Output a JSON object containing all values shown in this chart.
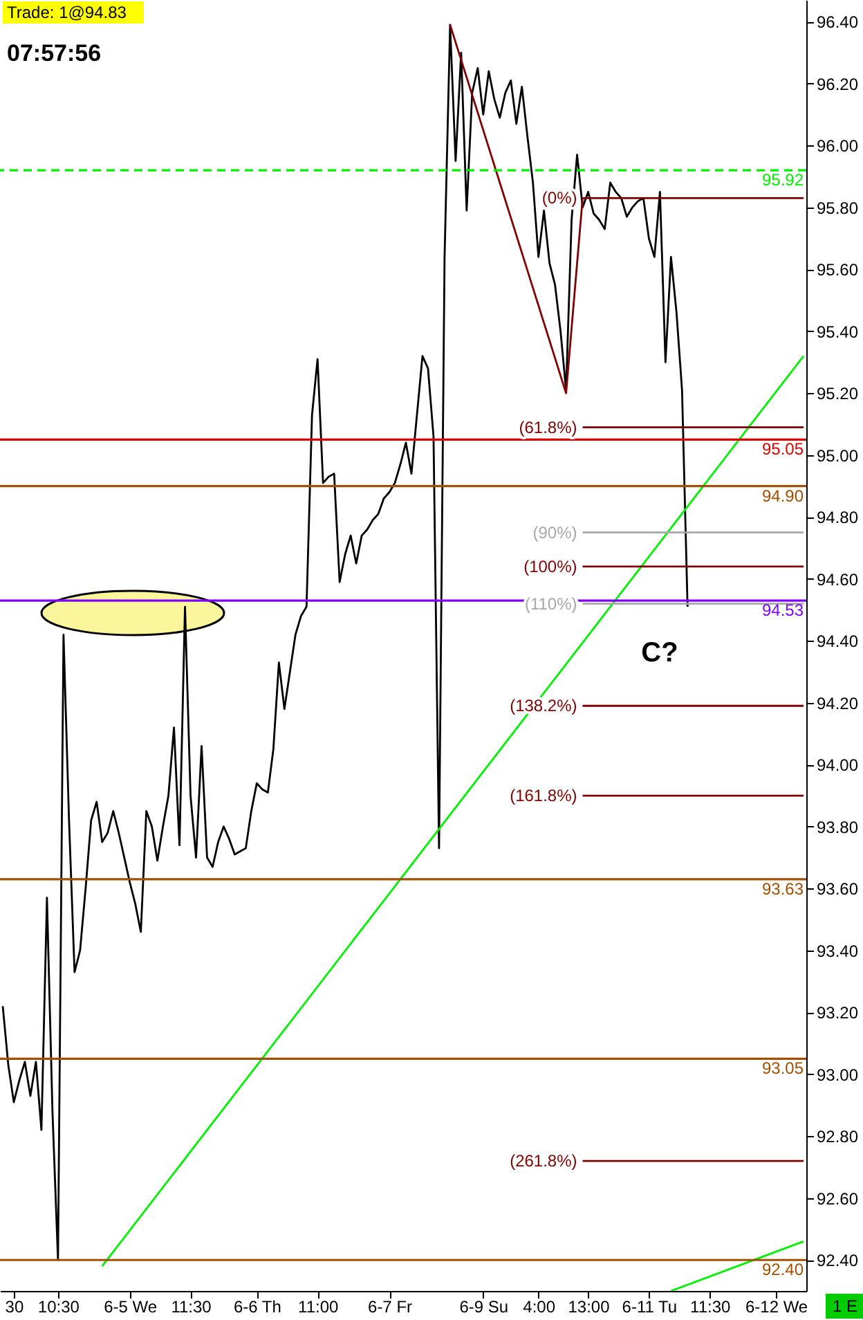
{
  "chart_data": {
    "type": "line",
    "title": "Trade: 1@94.83",
    "subtitle": "07:57:56",
    "categories": [
      null,
      null,
      "30",
      null,
      null,
      null,
      null,
      null,
      null,
      null,
      "10:30",
      null,
      null,
      null,
      null,
      null,
      null,
      null,
      null,
      null,
      null,
      null,
      null,
      "6-5 We",
      null,
      null,
      null,
      null,
      null,
      null,
      null,
      null,
      null,
      null,
      "11:30",
      null,
      null,
      null,
      null,
      null,
      null,
      null,
      null,
      null,
      null,
      null,
      "6-6 Th",
      null,
      null,
      null,
      null,
      null,
      null,
      null,
      null,
      null,
      null,
      "11:00",
      null,
      null,
      null,
      null,
      null,
      null,
      null,
      null,
      null,
      null,
      null,
      null,
      "6-7 Fr",
      null,
      null,
      null,
      null,
      null,
      null,
      null,
      null,
      null,
      null,
      null,
      null,
      null,
      null,
      null,
      null,
      "6-9 Su",
      null,
      null,
      null,
      null,
      null,
      null,
      null,
      null,
      null,
      "4:00",
      null,
      null,
      null,
      null,
      null,
      null,
      null,
      null,
      "13:00",
      null,
      null,
      null,
      null,
      null,
      null,
      null,
      null,
      null,
      null,
      "6-11 Tu",
      null,
      null,
      null,
      null,
      null,
      null,
      null,
      null,
      null,
      null,
      "11:30",
      null,
      null,
      null,
      null,
      null,
      null,
      null,
      null,
      null,
      null,
      null,
      "6-12 We",
      null,
      null,
      null,
      null,
      null
    ],
    "ylim": [
      92.3,
      96.47
    ],
    "yticks": [
      {
        "value": 92.4,
        "label": "92.40"
      },
      {
        "value": 92.6,
        "label": "92.60"
      },
      {
        "value": 92.8,
        "label": "92.80"
      },
      {
        "value": 93,
        "label": "93.00"
      },
      {
        "value": 93.2,
        "label": "93.20"
      },
      {
        "value": 93.4,
        "label": "93.40"
      },
      {
        "value": 93.6,
        "label": "93.60"
      },
      {
        "value": 93.8,
        "label": "93.80"
      },
      {
        "value": 94,
        "label": "94.00"
      },
      {
        "value": 94.2,
        "label": "94.20"
      },
      {
        "value": 94.4,
        "label": "94.40"
      },
      {
        "value": 94.6,
        "label": "94.60"
      },
      {
        "value": 94.8,
        "label": "94.80"
      },
      {
        "value": 95,
        "label": "95.00"
      },
      {
        "value": 95.2,
        "label": "95.20"
      },
      {
        "value": 95.4,
        "label": "95.40"
      },
      {
        "value": 95.6,
        "label": "95.60"
      },
      {
        "value": 95.8,
        "label": "95.80"
      },
      {
        "value": 96,
        "label": "96.00"
      },
      {
        "value": 96.2,
        "label": "96.20"
      },
      {
        "value": 96.4,
        "label": "96.40"
      }
    ],
    "grid": false,
    "marker": "none",
    "series": [
      {
        "color": "#000000",
        "values": [
          93.22,
          93.03,
          92.91,
          92.98,
          93.04,
          92.93,
          93.04,
          92.82,
          93.57,
          92.88,
          92.4,
          94.42,
          93.82,
          93.33,
          93.4,
          93.6,
          93.82,
          93.88,
          93.75,
          93.78,
          93.85,
          93.78,
          93.7,
          93.62,
          93.55,
          93.46,
          93.85,
          93.8,
          93.69,
          93.8,
          93.9,
          94.12,
          93.74,
          94.51,
          93.9,
          93.7,
          94.06,
          93.7,
          93.67,
          93.75,
          93.8,
          93.76,
          93.71,
          93.72,
          93.73,
          93.85,
          93.94,
          93.92,
          93.91,
          94.05,
          94.33,
          94.18,
          94.3,
          94.42,
          94.48,
          94.51,
          95.13,
          95.31,
          94.91,
          94.93,
          94.94,
          94.59,
          94.68,
          94.74,
          94.65,
          94.74,
          94.76,
          94.79,
          94.81,
          94.86,
          94.88,
          94.91,
          94.97,
          95.04,
          94.94,
          95.13,
          95.32,
          95.28,
          95.06,
          93.73,
          95.64,
          96.39,
          95.95,
          96.3,
          95.79,
          96.17,
          96.25,
          96.1,
          96.24,
          96.15,
          96.09,
          96.17,
          96.21,
          96.07,
          96.19,
          96.03,
          95.88,
          95.64,
          95.79,
          95.62,
          95.55,
          95.4,
          95.21,
          95.76,
          95.97,
          95.8,
          95.85,
          95.78,
          95.76,
          95.73,
          95.88,
          95.85,
          95.83,
          95.77,
          95.8,
          95.82,
          95.83,
          95.7,
          95.64,
          95.85,
          95.3,
          95.64,
          95.46,
          95.21,
          94.51,
          null,
          null,
          null,
          null,
          null,
          null,
          null,
          null,
          null,
          null,
          null,
          null,
          null,
          null,
          null,
          null,
          null,
          null,
          null,
          null,
          null
        ]
      },
      {
        "color": "#00ee00",
        "values": [
          null,
          null,
          null,
          null,
          null,
          null,
          null,
          null,
          null,
          null,
          null,
          null,
          null,
          null,
          null,
          null,
          null,
          null,
          92.38,
          null,
          null,
          null,
          null,
          null,
          null,
          null,
          null,
          null,
          null,
          null,
          null,
          null,
          null,
          null,
          null,
          null,
          null,
          null,
          null,
          null,
          null,
          null,
          null,
          null,
          null,
          null,
          null,
          null,
          null,
          null,
          null,
          null,
          null,
          null,
          null,
          null,
          null,
          null,
          null,
          null,
          null,
          null,
          null,
          null,
          null,
          null,
          null,
          null,
          null,
          null,
          null,
          null,
          null,
          null,
          null,
          null,
          null,
          null,
          null,
          null,
          null,
          null,
          null,
          null,
          null,
          null,
          null,
          null,
          null,
          null,
          null,
          null,
          null,
          null,
          null,
          null,
          null,
          null,
          null,
          null,
          null,
          null,
          null,
          null,
          null,
          null,
          null,
          null,
          null,
          null,
          null,
          null,
          null,
          null,
          null,
          null,
          null,
          null,
          null,
          null,
          null,
          null,
          null,
          null,
          null,
          null,
          null,
          null,
          null,
          null,
          null,
          null,
          null,
          null,
          null,
          null,
          null,
          null,
          null,
          null,
          null,
          null,
          null,
          null,
          null,
          95.32
        ]
      },
      {
        "color": "#00ee00",
        "values": [
          null,
          null,
          null,
          null,
          null,
          null,
          null,
          null,
          null,
          null,
          null,
          null,
          null,
          null,
          null,
          null,
          null,
          null,
          null,
          null,
          null,
          null,
          null,
          null,
          null,
          null,
          null,
          null,
          null,
          null,
          null,
          null,
          null,
          null,
          null,
          null,
          null,
          null,
          null,
          null,
          null,
          null,
          null,
          null,
          null,
          null,
          null,
          null,
          null,
          null,
          null,
          null,
          null,
          null,
          null,
          null,
          null,
          null,
          null,
          null,
          null,
          null,
          null,
          null,
          null,
          null,
          null,
          null,
          null,
          null,
          null,
          null,
          null,
          null,
          null,
          null,
          null,
          null,
          null,
          null,
          null,
          null,
          null,
          null,
          null,
          null,
          null,
          null,
          null,
          null,
          null,
          null,
          null,
          null,
          null,
          null,
          null,
          null,
          null,
          null,
          null,
          null,
          null,
          null,
          null,
          null,
          null,
          null,
          null,
          null,
          null,
          null,
          null,
          null,
          null,
          null,
          null,
          null,
          null,
          null,
          null,
          92.3,
          null,
          null,
          null,
          null,
          null,
          null,
          null,
          null,
          null,
          null,
          null,
          null,
          null,
          null,
          null,
          null,
          null,
          null,
          null,
          null,
          null,
          null,
          null,
          92.46
        ]
      },
      {
        "color": "#800000",
        "values": [
          null,
          null,
          null,
          null,
          null,
          null,
          null,
          null,
          null,
          null,
          null,
          null,
          null,
          null,
          null,
          null,
          null,
          null,
          null,
          null,
          null,
          null,
          null,
          null,
          null,
          null,
          null,
          null,
          null,
          null,
          null,
          null,
          null,
          null,
          null,
          null,
          null,
          null,
          null,
          null,
          null,
          null,
          null,
          null,
          null,
          null,
          null,
          null,
          null,
          null,
          null,
          null,
          null,
          null,
          null,
          null,
          null,
          null,
          null,
          null,
          null,
          null,
          null,
          null,
          null,
          null,
          null,
          null,
          null,
          null,
          null,
          null,
          null,
          null,
          null,
          null,
          null,
          null,
          null,
          null,
          null,
          96.39,
          null,
          null,
          null,
          null,
          null,
          null,
          null,
          null,
          null,
          null,
          null,
          null,
          null,
          null,
          null,
          null,
          null,
          null,
          null,
          null,
          95.2,
          null,
          null,
          95.83,
          null,
          null,
          null,
          null,
          null,
          null,
          null,
          null,
          null,
          null,
          null,
          null,
          null,
          null,
          null,
          null,
          null,
          null,
          null,
          null,
          null,
          null,
          null,
          null,
          null,
          null,
          null,
          null,
          null,
          null,
          null,
          null,
          null,
          null,
          null,
          null,
          null,
          null,
          null,
          null
        ]
      },
      {
        "name": "(0%)",
        "color": "#800000",
        "values": [
          null,
          null,
          null,
          null,
          null,
          null,
          null,
          null,
          null,
          null,
          null,
          null,
          null,
          null,
          null,
          null,
          null,
          null,
          null,
          null,
          null,
          null,
          null,
          null,
          null,
          null,
          null,
          null,
          null,
          null,
          null,
          null,
          null,
          null,
          null,
          null,
          null,
          null,
          null,
          null,
          null,
          null,
          null,
          null,
          null,
          null,
          null,
          null,
          null,
          null,
          null,
          null,
          null,
          null,
          null,
          null,
          null,
          null,
          null,
          null,
          null,
          null,
          null,
          null,
          null,
          null,
          null,
          null,
          null,
          null,
          null,
          null,
          null,
          null,
          null,
          null,
          null,
          null,
          null,
          null,
          null,
          null,
          null,
          null,
          null,
          null,
          null,
          null,
          null,
          null,
          null,
          null,
          null,
          null,
          null,
          null,
          null,
          null,
          null,
          null,
          null,
          null,
          null,
          null,
          null,
          95.83,
          null,
          null,
          null,
          null,
          null,
          null,
          null,
          null,
          null,
          null,
          null,
          null,
          null,
          null,
          null,
          null,
          null,
          null,
          null,
          null,
          null,
          null,
          null,
          null,
          null,
          null,
          null,
          null,
          null,
          null,
          null,
          null,
          null,
          null,
          null,
          null,
          null,
          null,
          null,
          95.83
        ]
      },
      {
        "name": "(61.8%)",
        "color": "#800000",
        "values": [
          null,
          null,
          null,
          null,
          null,
          null,
          null,
          null,
          null,
          null,
          null,
          null,
          null,
          null,
          null,
          null,
          null,
          null,
          null,
          null,
          null,
          null,
          null,
          null,
          null,
          null,
          null,
          null,
          null,
          null,
          null,
          null,
          null,
          null,
          null,
          null,
          null,
          null,
          null,
          null,
          null,
          null,
          null,
          null,
          null,
          null,
          null,
          null,
          null,
          null,
          null,
          null,
          null,
          null,
          null,
          null,
          null,
          null,
          null,
          null,
          null,
          null,
          null,
          null,
          null,
          null,
          null,
          null,
          null,
          null,
          null,
          null,
          null,
          null,
          null,
          null,
          null,
          null,
          null,
          null,
          null,
          null,
          null,
          null,
          null,
          null,
          null,
          null,
          null,
          null,
          null,
          null,
          null,
          null,
          null,
          null,
          null,
          null,
          null,
          null,
          null,
          null,
          null,
          null,
          null,
          95.09,
          null,
          null,
          null,
          null,
          null,
          null,
          null,
          null,
          null,
          null,
          null,
          null,
          null,
          null,
          null,
          null,
          null,
          null,
          null,
          null,
          null,
          null,
          null,
          null,
          null,
          null,
          null,
          null,
          null,
          null,
          null,
          null,
          null,
          null,
          null,
          null,
          null,
          null,
          null,
          95.09
        ]
      },
      {
        "name": "(90%)",
        "color": "#a8a8a8",
        "values": [
          null,
          null,
          null,
          null,
          null,
          null,
          null,
          null,
          null,
          null,
          null,
          null,
          null,
          null,
          null,
          null,
          null,
          null,
          null,
          null,
          null,
          null,
          null,
          null,
          null,
          null,
          null,
          null,
          null,
          null,
          null,
          null,
          null,
          null,
          null,
          null,
          null,
          null,
          null,
          null,
          null,
          null,
          null,
          null,
          null,
          null,
          null,
          null,
          null,
          null,
          null,
          null,
          null,
          null,
          null,
          null,
          null,
          null,
          null,
          null,
          null,
          null,
          null,
          null,
          null,
          null,
          null,
          null,
          null,
          null,
          null,
          null,
          null,
          null,
          null,
          null,
          null,
          null,
          null,
          null,
          null,
          null,
          null,
          null,
          null,
          null,
          null,
          null,
          null,
          null,
          null,
          null,
          null,
          null,
          null,
          null,
          null,
          null,
          null,
          null,
          null,
          null,
          null,
          null,
          null,
          94.75,
          null,
          null,
          null,
          null,
          null,
          null,
          null,
          null,
          null,
          null,
          null,
          null,
          null,
          null,
          null,
          null,
          null,
          null,
          null,
          null,
          null,
          null,
          null,
          null,
          null,
          null,
          null,
          null,
          null,
          null,
          null,
          null,
          null,
          null,
          null,
          null,
          null,
          null,
          null,
          94.75
        ]
      },
      {
        "name": "(100%)",
        "color": "#800000",
        "values": [
          null,
          null,
          null,
          null,
          null,
          null,
          null,
          null,
          null,
          null,
          null,
          null,
          null,
          null,
          null,
          null,
          null,
          null,
          null,
          null,
          null,
          null,
          null,
          null,
          null,
          null,
          null,
          null,
          null,
          null,
          null,
          null,
          null,
          null,
          null,
          null,
          null,
          null,
          null,
          null,
          null,
          null,
          null,
          null,
          null,
          null,
          null,
          null,
          null,
          null,
          null,
          null,
          null,
          null,
          null,
          null,
          null,
          null,
          null,
          null,
          null,
          null,
          null,
          null,
          null,
          null,
          null,
          null,
          null,
          null,
          null,
          null,
          null,
          null,
          null,
          null,
          null,
          null,
          null,
          null,
          null,
          null,
          null,
          null,
          null,
          null,
          null,
          null,
          null,
          null,
          null,
          null,
          null,
          null,
          null,
          null,
          null,
          null,
          null,
          null,
          null,
          null,
          null,
          null,
          null,
          94.64,
          null,
          null,
          null,
          null,
          null,
          null,
          null,
          null,
          null,
          null,
          null,
          null,
          null,
          null,
          null,
          null,
          null,
          null,
          null,
          null,
          null,
          null,
          null,
          null,
          null,
          null,
          null,
          null,
          null,
          null,
          null,
          null,
          null,
          null,
          null,
          null,
          null,
          null,
          null,
          94.64
        ]
      },
      {
        "name": "(110%)",
        "color": "#a8a8a8",
        "values": [
          null,
          null,
          null,
          null,
          null,
          null,
          null,
          null,
          null,
          null,
          null,
          null,
          null,
          null,
          null,
          null,
          null,
          null,
          null,
          null,
          null,
          null,
          null,
          null,
          null,
          null,
          null,
          null,
          null,
          null,
          null,
          null,
          null,
          null,
          null,
          null,
          null,
          null,
          null,
          null,
          null,
          null,
          null,
          null,
          null,
          null,
          null,
          null,
          null,
          null,
          null,
          null,
          null,
          null,
          null,
          null,
          null,
          null,
          null,
          null,
          null,
          null,
          null,
          null,
          null,
          null,
          null,
          null,
          null,
          null,
          null,
          null,
          null,
          null,
          null,
          null,
          null,
          null,
          null,
          null,
          null,
          null,
          null,
          null,
          null,
          null,
          null,
          null,
          null,
          null,
          null,
          null,
          null,
          null,
          null,
          null,
          null,
          null,
          null,
          null,
          null,
          null,
          null,
          null,
          null,
          94.52,
          null,
          null,
          null,
          null,
          null,
          null,
          null,
          null,
          null,
          null,
          null,
          null,
          null,
          null,
          null,
          null,
          null,
          null,
          null,
          null,
          null,
          null,
          null,
          null,
          null,
          null,
          null,
          null,
          null,
          null,
          null,
          null,
          null,
          null,
          null,
          null,
          null,
          null,
          null,
          94.52
        ]
      },
      {
        "name": "(138.2%)",
        "color": "#800000",
        "values": [
          null,
          null,
          null,
          null,
          null,
          null,
          null,
          null,
          null,
          null,
          null,
          null,
          null,
          null,
          null,
          null,
          null,
          null,
          null,
          null,
          null,
          null,
          null,
          null,
          null,
          null,
          null,
          null,
          null,
          null,
          null,
          null,
          null,
          null,
          null,
          null,
          null,
          null,
          null,
          null,
          null,
          null,
          null,
          null,
          null,
          null,
          null,
          null,
          null,
          null,
          null,
          null,
          null,
          null,
          null,
          null,
          null,
          null,
          null,
          null,
          null,
          null,
          null,
          null,
          null,
          null,
          null,
          null,
          null,
          null,
          null,
          null,
          null,
          null,
          null,
          null,
          null,
          null,
          null,
          null,
          null,
          null,
          null,
          null,
          null,
          null,
          null,
          null,
          null,
          null,
          null,
          null,
          null,
          null,
          null,
          null,
          null,
          null,
          null,
          null,
          null,
          null,
          null,
          null,
          null,
          94.19,
          null,
          null,
          null,
          null,
          null,
          null,
          null,
          null,
          null,
          null,
          null,
          null,
          null,
          null,
          null,
          null,
          null,
          null,
          null,
          null,
          null,
          null,
          null,
          null,
          null,
          null,
          null,
          null,
          null,
          null,
          null,
          null,
          null,
          null,
          null,
          null,
          null,
          null,
          null,
          94.19
        ]
      },
      {
        "name": "(161.8%)",
        "color": "#800000",
        "values": [
          null,
          null,
          null,
          null,
          null,
          null,
          null,
          null,
          null,
          null,
          null,
          null,
          null,
          null,
          null,
          null,
          null,
          null,
          null,
          null,
          null,
          null,
          null,
          null,
          null,
          null,
          null,
          null,
          null,
          null,
          null,
          null,
          null,
          null,
          null,
          null,
          null,
          null,
          null,
          null,
          null,
          null,
          null,
          null,
          null,
          null,
          null,
          null,
          null,
          null,
          null,
          null,
          null,
          null,
          null,
          null,
          null,
          null,
          null,
          null,
          null,
          null,
          null,
          null,
          null,
          null,
          null,
          null,
          null,
          null,
          null,
          null,
          null,
          null,
          null,
          null,
          null,
          null,
          null,
          null,
          null,
          null,
          null,
          null,
          null,
          null,
          null,
          null,
          null,
          null,
          null,
          null,
          null,
          null,
          null,
          null,
          null,
          null,
          null,
          null,
          null,
          null,
          null,
          null,
          null,
          93.9,
          null,
          null,
          null,
          null,
          null,
          null,
          null,
          null,
          null,
          null,
          null,
          null,
          null,
          null,
          null,
          null,
          null,
          null,
          null,
          null,
          null,
          null,
          null,
          null,
          null,
          null,
          null,
          null,
          null,
          null,
          null,
          null,
          null,
          null,
          null,
          null,
          null,
          null,
          null,
          93.9
        ]
      },
      {
        "name": "(261.8%)",
        "color": "#800000",
        "values": [
          null,
          null,
          null,
          null,
          null,
          null,
          null,
          null,
          null,
          null,
          null,
          null,
          null,
          null,
          null,
          null,
          null,
          null,
          null,
          null,
          null,
          null,
          null,
          null,
          null,
          null,
          null,
          null,
          null,
          null,
          null,
          null,
          null,
          null,
          null,
          null,
          null,
          null,
          null,
          null,
          null,
          null,
          null,
          null,
          null,
          null,
          null,
          null,
          null,
          null,
          null,
          null,
          null,
          null,
          null,
          null,
          null,
          null,
          null,
          null,
          null,
          null,
          null,
          null,
          null,
          null,
          null,
          null,
          null,
          null,
          null,
          null,
          null,
          null,
          null,
          null,
          null,
          null,
          null,
          null,
          null,
          null,
          null,
          null,
          null,
          null,
          null,
          null,
          null,
          null,
          null,
          null,
          null,
          null,
          null,
          null,
          null,
          null,
          null,
          null,
          null,
          null,
          null,
          null,
          null,
          92.72,
          null,
          null,
          null,
          null,
          null,
          null,
          null,
          null,
          null,
          null,
          null,
          null,
          null,
          null,
          null,
          null,
          null,
          null,
          null,
          null,
          null,
          null,
          null,
          null,
          null,
          null,
          null,
          null,
          null,
          null,
          null,
          null,
          null,
          null,
          null,
          null,
          null,
          null,
          null,
          92.72
        ]
      }
    ],
    "ref_lines": [
      {
        "axis": "y",
        "value": 95.92,
        "label": "95.92",
        "color": "#00ee00",
        "line_style": "dashed"
      },
      {
        "axis": "y",
        "value": 95.05,
        "label": "95.05",
        "color": "#dd0000"
      },
      {
        "axis": "y",
        "value": 94.9,
        "label": "94.90",
        "color": "#a05000"
      },
      {
        "axis": "y",
        "value": 94.53,
        "label": "94.53",
        "color": "#8000ff"
      },
      {
        "axis": "y",
        "value": 93.63,
        "label": "93.63",
        "color": "#a05000"
      },
      {
        "axis": "y",
        "value": 93.05,
        "label": "93.05",
        "color": "#a05000"
      },
      {
        "axis": "y",
        "value": 92.4,
        "label": "92.40",
        "color": "#a05000"
      }
    ],
    "annotations": [
      "C?",
      "1 E"
    ]
  }
}
